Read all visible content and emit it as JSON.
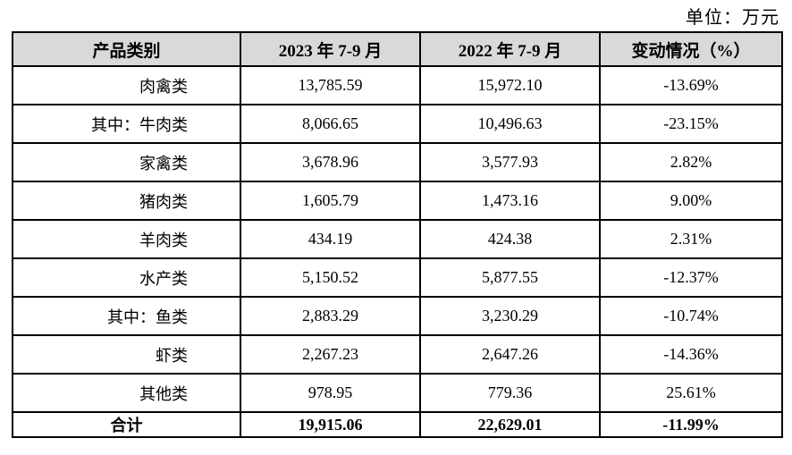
{
  "unit_label": "单位：万元",
  "colors": {
    "header_bg": "#d9d9d9",
    "border": "#000000",
    "text": "#000000",
    "page_bg": "#ffffff"
  },
  "table": {
    "headers": [
      "产品类别",
      "2023 年 7-9 月",
      "2022 年 7-9 月",
      "变动情况（%）"
    ],
    "rows": [
      {
        "category": "肉禽类",
        "v2023": "13,785.59",
        "v2022": "15,972.10",
        "change": "-13.69%"
      },
      {
        "category": "其中：牛肉类",
        "v2023": "8,066.65",
        "v2022": "10,496.63",
        "change": "-23.15%"
      },
      {
        "category": "家禽类",
        "v2023": "3,678.96",
        "v2022": "3,577.93",
        "change": "2.82%"
      },
      {
        "category": "猪肉类",
        "v2023": "1,605.79",
        "v2022": "1,473.16",
        "change": "9.00%"
      },
      {
        "category": "羊肉类",
        "v2023": "434.19",
        "v2022": "424.38",
        "change": "2.31%"
      },
      {
        "category": "水产类",
        "v2023": "5,150.52",
        "v2022": "5,877.55",
        "change": "-12.37%"
      },
      {
        "category": "其中：鱼类",
        "v2023": "2,883.29",
        "v2022": "3,230.29",
        "change": "-10.74%"
      },
      {
        "category": "虾类",
        "v2023": "2,267.23",
        "v2022": "2,647.26",
        "change": "-14.36%"
      },
      {
        "category": "其他类",
        "v2023": "978.95",
        "v2022": "779.36",
        "change": "25.61%"
      }
    ],
    "total": {
      "category": "合计",
      "v2023": "19,915.06",
      "v2022": "22,629.01",
      "change": "-11.99%"
    }
  },
  "chart_data": {
    "type": "table",
    "title": "",
    "unit": "万元",
    "columns": [
      "产品类别",
      "2023 年 7-9 月",
      "2022 年 7-9 月",
      "变动情况（%）"
    ],
    "categories": [
      "肉禽类",
      "其中：牛肉类",
      "家禽类",
      "猪肉类",
      "羊肉类",
      "水产类",
      "其中：鱼类",
      "虾类",
      "其他类",
      "合计"
    ],
    "series": [
      {
        "name": "2023 年 7-9 月",
        "values": [
          13785.59,
          8066.65,
          3678.96,
          1605.79,
          434.19,
          5150.52,
          2883.29,
          2267.23,
          978.95,
          19915.06
        ]
      },
      {
        "name": "2022 年 7-9 月",
        "values": [
          15972.1,
          10496.63,
          3577.93,
          1473.16,
          424.38,
          5877.55,
          3230.29,
          2647.26,
          779.36,
          22629.01
        ]
      },
      {
        "name": "变动情况（%）",
        "values": [
          -13.69,
          -23.15,
          2.82,
          9.0,
          2.31,
          -12.37,
          -10.74,
          -14.36,
          25.61,
          -11.99
        ]
      }
    ]
  }
}
